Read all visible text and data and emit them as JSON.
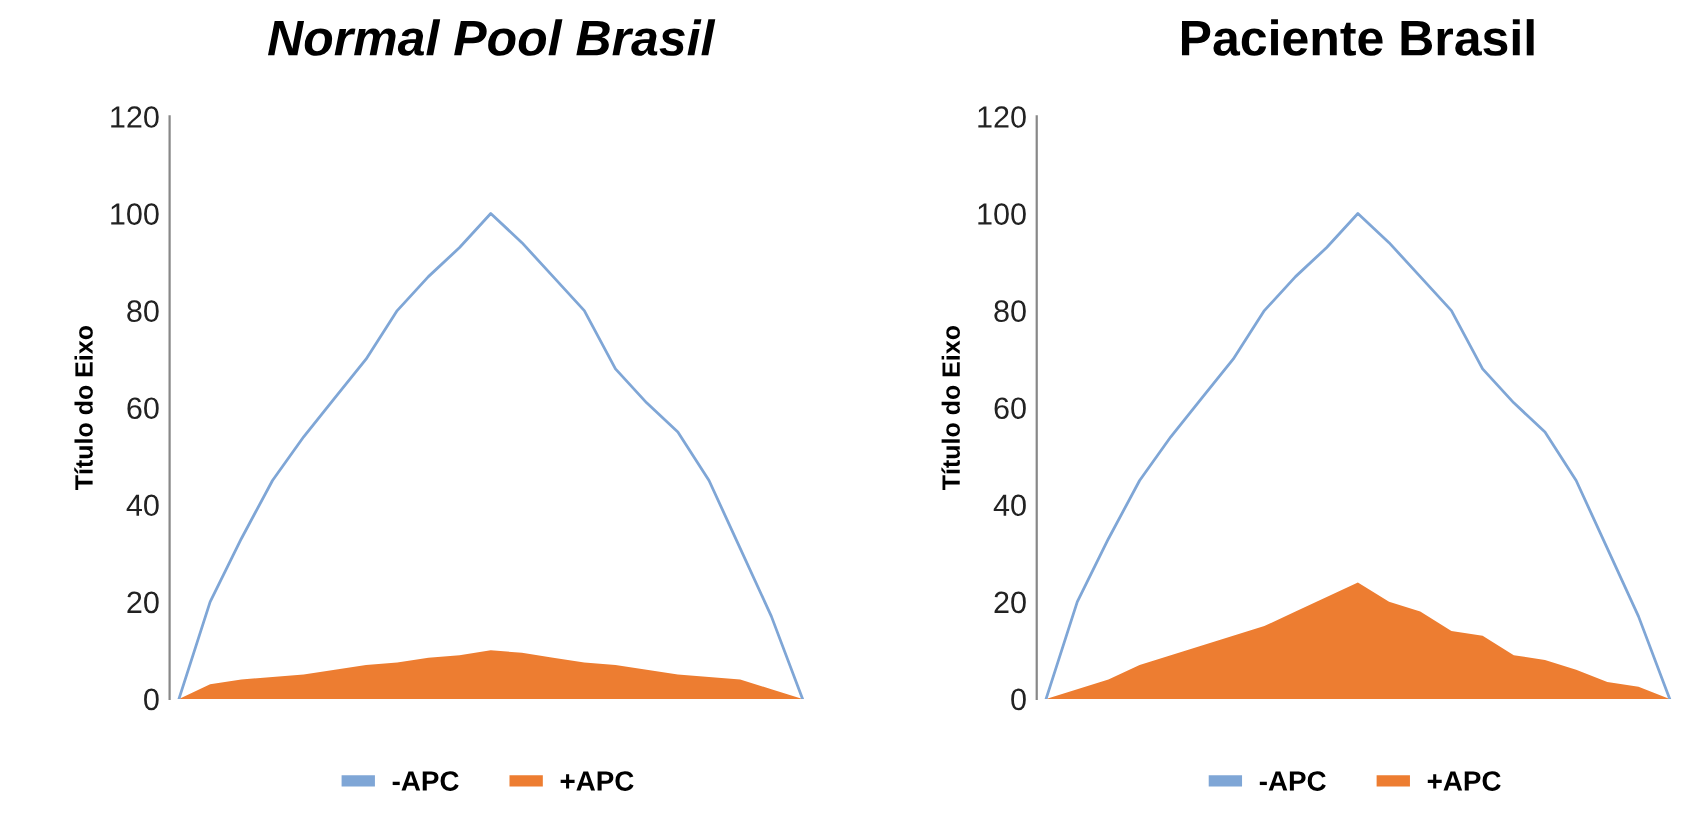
{
  "chart_data": [
    {
      "type": "line",
      "title": "Normal Pool Brasil",
      "ylabel": "Título do Eixo",
      "categories": [
        null,
        null,
        null,
        null,
        null,
        null,
        null,
        null,
        null,
        null,
        null,
        null,
        null,
        null,
        null,
        null,
        null,
        null,
        null,
        null,
        null
      ],
      "ylim": [
        0,
        120
      ],
      "yticks": [
        0,
        20,
        40,
        60,
        80,
        100,
        120
      ],
      "grid": false,
      "legend": "bottom",
      "tick_labels": "y",
      "series": [
        {
          "name": "-APC",
          "color": "#7fa6d6",
          "values": [
            0,
            20,
            33,
            45,
            54,
            62,
            70,
            80,
            87,
            93,
            100,
            94,
            87,
            80,
            68,
            61,
            55,
            45,
            31,
            17,
            0
          ]
        },
        {
          "name": "+APC",
          "type": "area",
          "color": "#ed7d31",
          "values": [
            0,
            3,
            4,
            4.5,
            5,
            6,
            7,
            7.5,
            8.5,
            9,
            10,
            9.5,
            8.5,
            7.5,
            7,
            6,
            5,
            4.5,
            4,
            2,
            0
          ]
        }
      ]
    },
    {
      "type": "line",
      "title": "Paciente Brasil",
      "ylabel": "Título do Eixo",
      "categories": [
        null,
        null,
        null,
        null,
        null,
        null,
        null,
        null,
        null,
        null,
        null,
        null,
        null,
        null,
        null,
        null,
        null,
        null,
        null,
        null,
        null
      ],
      "ylim": [
        0,
        120
      ],
      "yticks": [
        0,
        20,
        40,
        60,
        80,
        100,
        120
      ],
      "grid": false,
      "legend": "bottom",
      "tick_labels": "y",
      "series": [
        {
          "name": "-APC",
          "color": "#7fa6d6",
          "values": [
            0,
            20,
            33,
            45,
            54,
            62,
            70,
            80,
            87,
            93,
            100,
            94,
            87,
            80,
            68,
            61,
            55,
            45,
            31,
            17,
            0
          ]
        },
        {
          "name": "+APC",
          "type": "area",
          "color": "#ed7d31",
          "values": [
            0,
            2,
            4,
            7,
            9,
            11,
            13,
            15,
            18,
            21,
            24,
            20,
            18,
            14,
            13,
            9,
            8,
            6,
            3.5,
            2.5,
            0
          ]
        }
      ]
    }
  ]
}
